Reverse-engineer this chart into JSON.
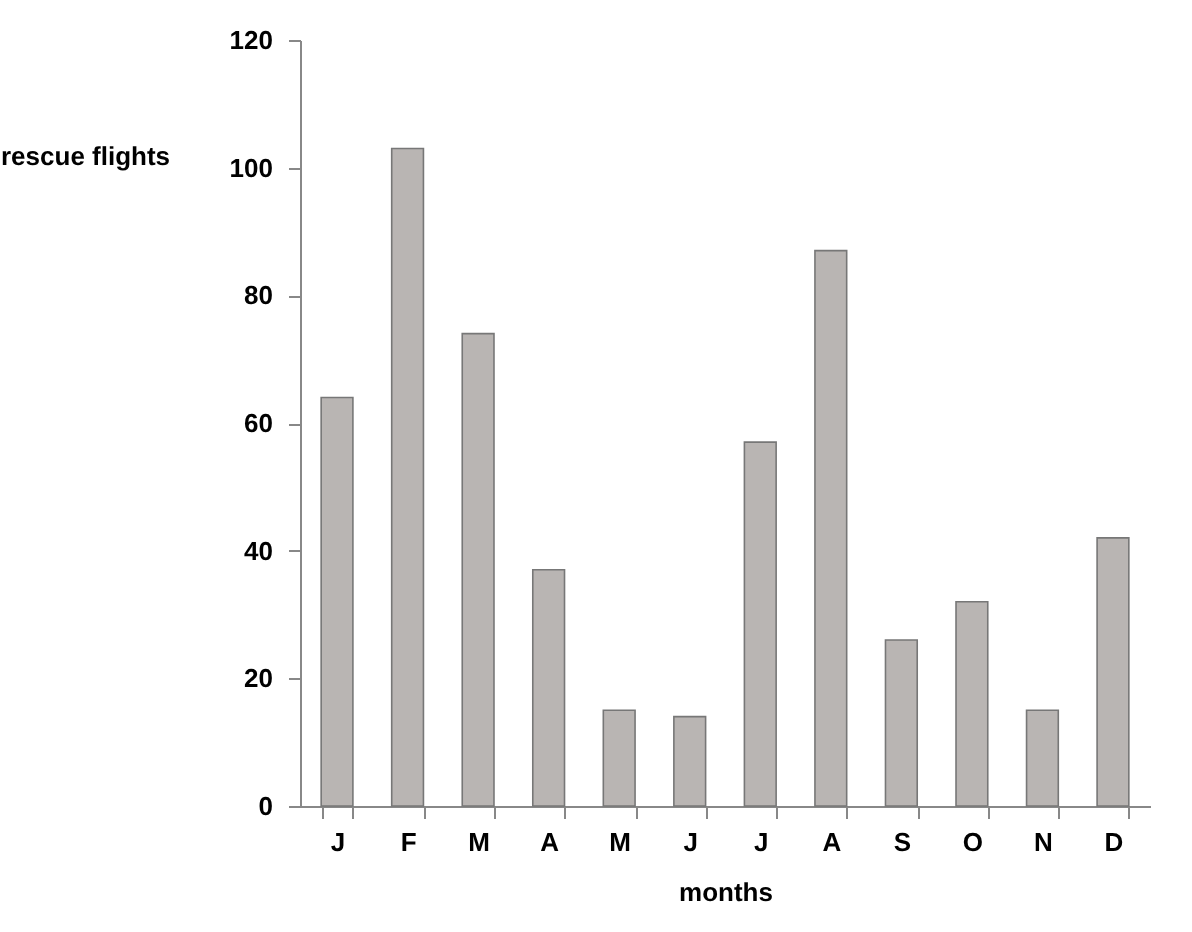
{
  "chart_data": {
    "type": "bar",
    "xlabel": "months",
    "ylabel": "rescue flights",
    "categories": [
      "J",
      "F",
      "M",
      "A",
      "M",
      "J",
      "J",
      "A",
      "S",
      "O",
      "N",
      "D"
    ],
    "values": [
      64,
      103,
      74,
      37,
      15,
      14,
      57,
      87,
      26,
      32,
      15,
      42
    ],
    "color": "#b9b5b3",
    "ylim": [
      0,
      120
    ],
    "yticks": [
      0,
      20,
      40,
      60,
      80,
      100,
      120
    ],
    "grid": false
  }
}
